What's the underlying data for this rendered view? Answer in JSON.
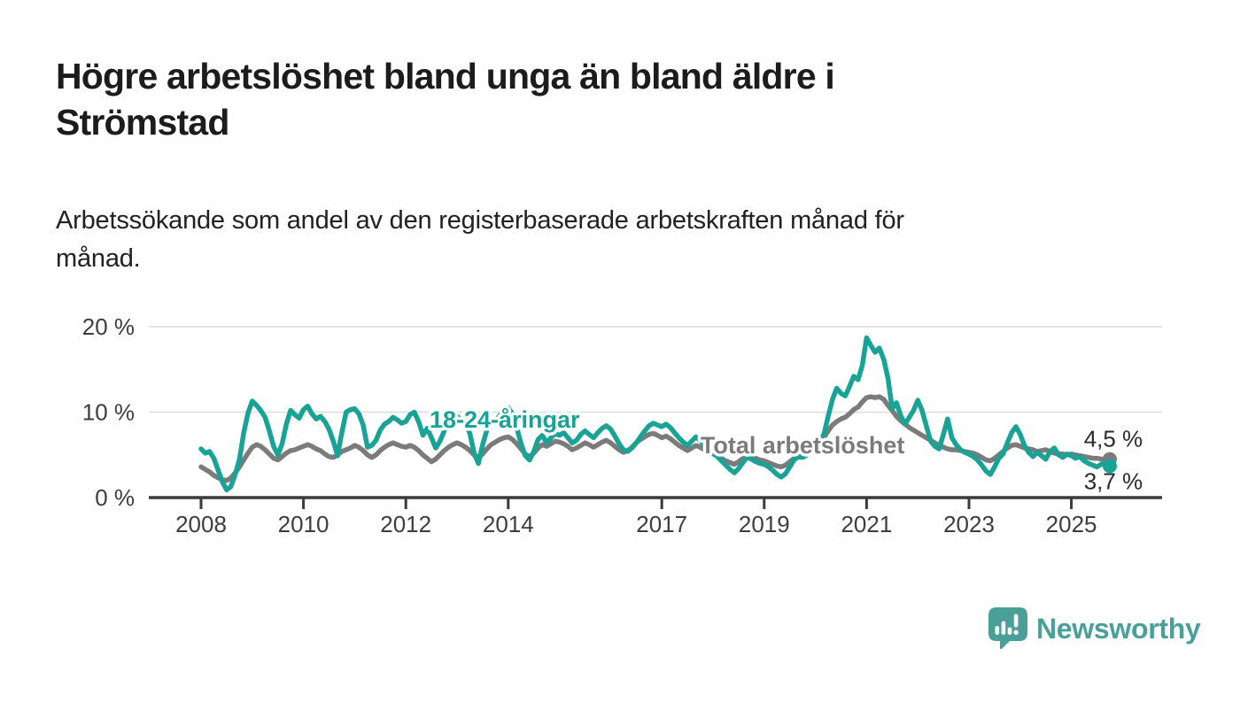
{
  "header": {
    "title_line1": "Högre arbetslöshet bland unga än bland äldre i",
    "title_line2": "Strömstad",
    "subtitle_line1": "Arbetssökande som andel av den registerbaserade arbetskraften månad för",
    "subtitle_line2": "månad."
  },
  "footer": {
    "brand": "Newsworthy",
    "brand_color": "#4aa099"
  },
  "chart_data": {
    "type": "line",
    "title": "Högre arbetslöshet bland unga än bland äldre i Strömstad",
    "subtitle": "Arbetssökande som andel av den registerbaserade arbetskraften månad för månad.",
    "grid": "horizontal-only",
    "x_axis": {
      "start_year": 2008,
      "end": 2025.83,
      "tick_labels": [
        2008,
        2010,
        2012,
        2014,
        2017,
        2019,
        2021,
        2023,
        2025
      ]
    },
    "y_axis": {
      "range": [
        0,
        20
      ],
      "ticks": [
        {
          "value": 0,
          "label": "0 %"
        },
        {
          "value": 10,
          "label": "10 %"
        },
        {
          "value": 20,
          "label": "20 %"
        }
      ]
    },
    "series": [
      {
        "name": "Total arbetslöshet",
        "color": "#7b7b7b",
        "end_label": "4,5 %",
        "end_label_position": "above",
        "label_anchor": {
          "x": 2019.75,
          "y": 6.1
        },
        "start_year": 2008,
        "points_per_year": 12,
        "values": [
          3.6,
          3.3,
          3.0,
          2.6,
          2.3,
          2.1,
          2.0,
          2.3,
          2.9,
          3.6,
          4.4,
          5.2,
          5.9,
          6.2,
          6.0,
          5.6,
          5.1,
          4.6,
          4.4,
          4.8,
          5.2,
          5.5,
          5.6,
          5.8,
          6.0,
          6.2,
          6.0,
          5.7,
          5.5,
          5.1,
          4.8,
          4.7,
          5.0,
          5.4,
          5.6,
          5.8,
          6.1,
          5.9,
          5.5,
          5.0,
          4.7,
          5.0,
          5.5,
          5.9,
          6.2,
          6.4,
          6.2,
          6.0,
          5.9,
          6.1,
          5.9,
          5.5,
          5.0,
          4.6,
          4.2,
          4.5,
          5.0,
          5.5,
          5.9,
          6.2,
          6.4,
          6.2,
          5.9,
          5.5,
          5.0,
          4.7,
          5.1,
          5.7,
          6.2,
          6.5,
          6.8,
          7.0,
          7.1,
          6.8,
          6.3,
          5.7,
          5.1,
          4.8,
          5.2,
          5.8,
          6.2,
          6.0,
          6.3,
          6.6,
          6.5,
          6.3,
          6.0,
          5.6,
          5.8,
          6.1,
          6.4,
          6.2,
          5.9,
          6.2,
          6.5,
          6.7,
          6.4,
          6.0,
          5.6,
          5.3,
          5.5,
          5.9,
          6.4,
          6.8,
          7.1,
          7.4,
          7.5,
          7.3,
          7.0,
          7.2,
          6.9,
          6.5,
          6.1,
          5.8,
          5.5,
          5.8,
          6.1,
          5.9,
          5.6,
          5.3,
          5.1,
          4.9,
          4.6,
          4.3,
          4.1,
          3.9,
          4.2,
          4.6,
          4.9,
          4.8,
          4.6,
          4.4,
          4.3,
          4.1,
          3.9,
          3.7,
          3.6,
          3.8,
          4.2,
          4.6,
          4.9,
          5.0,
          5.2,
          5.5,
          5.8,
          6.3,
          7.0,
          7.8,
          8.5,
          8.9,
          9.2,
          9.4,
          9.8,
          10.3,
          10.6,
          11.2,
          11.7,
          11.8,
          11.7,
          11.8,
          11.5,
          10.8,
          10.2,
          9.5,
          9.0,
          8.6,
          8.2,
          7.9,
          7.6,
          7.3,
          7.0,
          6.7,
          6.4,
          6.1,
          5.9,
          5.7,
          5.6,
          5.6,
          5.5,
          5.4,
          5.3,
          5.2,
          5.0,
          4.7,
          4.4,
          4.3,
          4.6,
          5.0,
          5.4,
          5.8,
          6.1,
          6.2,
          6.0,
          5.8,
          5.7,
          5.6,
          5.4,
          5.5,
          5.6,
          5.4,
          5.2,
          5.1,
          5.1,
          5.0,
          5.1,
          5.0,
          4.9,
          4.8,
          4.7,
          4.6,
          4.6,
          4.5,
          4.5,
          4.5
        ]
      },
      {
        "name": "18-24-åringar",
        "color": "#19a396",
        "end_label": "3,7 %",
        "end_label_position": "below",
        "label_anchor": {
          "x": 2013.93,
          "y": 9.1
        },
        "start_year": 2008,
        "points_per_year": 12,
        "values": [
          5.7,
          5.2,
          5.4,
          4.6,
          3.2,
          1.8,
          0.9,
          1.3,
          2.7,
          4.5,
          7.6,
          9.9,
          11.3,
          10.8,
          10.2,
          9.4,
          7.8,
          6.0,
          5.0,
          6.3,
          8.6,
          10.2,
          9.7,
          9.3,
          10.3,
          10.7,
          9.8,
          9.2,
          9.5,
          8.9,
          8.0,
          6.6,
          4.9,
          7.6,
          10.0,
          10.3,
          10.4,
          9.8,
          8.5,
          5.9,
          6.1,
          6.7,
          7.9,
          8.6,
          8.9,
          9.4,
          9.1,
          8.7,
          8.9,
          9.7,
          10.0,
          8.9,
          7.3,
          8.1,
          7.0,
          5.8,
          6.6,
          7.8,
          8.8,
          9.4,
          9.5,
          9.1,
          8.7,
          7.5,
          5.2,
          4.0,
          6.2,
          7.9,
          8.7,
          9.0,
          9.6,
          10.3,
          10.5,
          9.8,
          8.2,
          6.3,
          4.9,
          4.4,
          5.4,
          6.8,
          7.3,
          6.4,
          7.0,
          7.5,
          7.3,
          7.6,
          7.0,
          6.4,
          6.7,
          7.4,
          7.8,
          7.4,
          7.0,
          7.6,
          8.1,
          8.4,
          8.0,
          7.2,
          6.3,
          5.6,
          5.4,
          5.8,
          6.4,
          7.1,
          7.8,
          8.4,
          8.7,
          8.5,
          8.3,
          8.6,
          8.2,
          7.6,
          7.0,
          6.5,
          6.1,
          6.6,
          7.1,
          6.7,
          6.1,
          5.6,
          5.2,
          4.8,
          4.3,
          3.8,
          3.3,
          2.9,
          3.4,
          4.1,
          4.7,
          4.5,
          4.2,
          4.0,
          3.9,
          3.6,
          3.2,
          2.7,
          2.4,
          2.8,
          3.6,
          4.4,
          4.8,
          4.7,
          5.0,
          5.4,
          5.8,
          6.6,
          7.4,
          9.5,
          11.5,
          12.8,
          12.2,
          11.9,
          13.0,
          14.2,
          13.8,
          15.5,
          18.7,
          17.8,
          17.0,
          17.5,
          16.2,
          14.0,
          10.4,
          11.1,
          9.6,
          8.6,
          9.4,
          10.2,
          11.4,
          10.2,
          8.4,
          6.6,
          6.0,
          5.7,
          7.4,
          9.2,
          7.0,
          6.2,
          5.6,
          5.3,
          5.1,
          4.8,
          4.4,
          3.8,
          3.1,
          2.7,
          3.6,
          4.6,
          5.1,
          6.4,
          7.6,
          8.3,
          7.4,
          6.1,
          5.3,
          4.8,
          5.3,
          4.9,
          4.5,
          5.4,
          5.8,
          5.0,
          4.7,
          5.1,
          4.9,
          4.6,
          4.8,
          4.3,
          4.0,
          3.8,
          3.6,
          3.9,
          4.1,
          3.7
        ]
      }
    ]
  }
}
